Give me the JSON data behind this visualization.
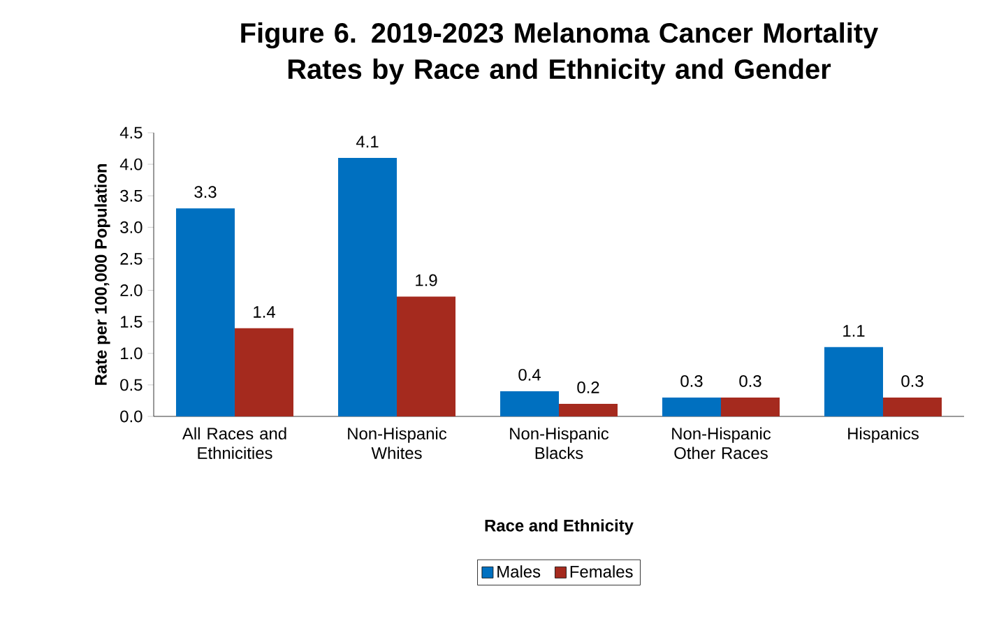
{
  "chart_data": {
    "type": "bar",
    "title": "Figure 6. 2019-2023 Melanoma Cancer Mortality Rates by Race and Ethnicity and Gender",
    "xlabel": "Race and Ethnicity",
    "ylabel": "Rate per 100,000 Population",
    "categories": [
      "All Races and Ethnicities",
      "Non-Hispanic Whites",
      "Non-Hispanic Blacks",
      "Non-Hispanic Other Races",
      "Hispanics"
    ],
    "series": [
      {
        "name": "Males",
        "color": "#0070c0",
        "values": [
          3.3,
          4.1,
          0.4,
          0.3,
          1.1
        ]
      },
      {
        "name": "Females",
        "color": "#a52a1e",
        "values": [
          1.4,
          1.9,
          0.2,
          0.3,
          0.3
        ]
      }
    ],
    "ylim": [
      0,
      4.5
    ],
    "yticks": [
      {
        "value": 0,
        "label": "0.0"
      },
      {
        "value": 0.5,
        "label": "0.5"
      },
      {
        "value": 1,
        "label": "1.0"
      },
      {
        "value": 1.5,
        "label": "1.5"
      },
      {
        "value": 2,
        "label": "2.0"
      },
      {
        "value": 2.5,
        "label": "2.5"
      },
      {
        "value": 3,
        "label": "3.0"
      },
      {
        "value": 3.5,
        "label": "3.5"
      },
      {
        "value": 4,
        "label": "4.0"
      },
      {
        "value": 4.5,
        "label": "4.5"
      }
    ],
    "data_labels": true,
    "grid": false,
    "legend": "bottom"
  }
}
